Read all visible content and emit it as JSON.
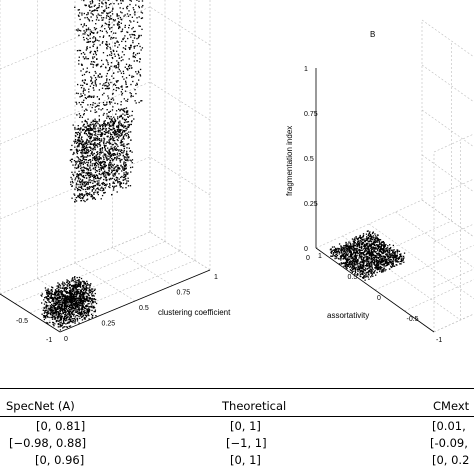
{
  "chart_data": [
    {
      "type": "scatter",
      "projection": "3d",
      "grid": true,
      "title": "",
      "x_axis": {
        "label": "clustering coefficient",
        "ticks": [
          "0",
          "0.25",
          "0.5",
          "0.75",
          "1"
        ],
        "range": [
          0,
          1
        ]
      },
      "y_axis": {
        "label": "",
        "ticks": [
          "-0.5",
          "-1"
        ],
        "range": [
          -1,
          1
        ]
      },
      "z_axis": {
        "label": "",
        "ticks": [],
        "range": [
          0,
          1
        ]
      },
      "series": [
        {
          "clusters": [
            {
              "x_range": [
                0.0,
                0.25
              ],
              "y_range": [
                -1.0,
                -0.3
              ],
              "z_range": [
                0.0,
                0.1
              ],
              "density": "high"
            },
            {
              "x_range": [
                0.3,
                0.65
              ],
              "y_range": [
                -0.2,
                0.2
              ],
              "z_range": [
                0.3,
                0.55
              ],
              "density": "high"
            },
            {
              "x_range": [
                0.35,
                0.75
              ],
              "y_range": [
                -0.1,
                0.3
              ],
              "z_range": [
                0.55,
                1.0
              ],
              "density": "medium"
            }
          ]
        }
      ]
    },
    {
      "type": "scatter",
      "projection": "3d",
      "grid": true,
      "panel_label": "B",
      "title": "",
      "x_axis": {
        "label": "assortativity",
        "ticks": [
          "1",
          "0.5",
          "0",
          "-0.5",
          "-1"
        ],
        "range": [
          1,
          -1
        ]
      },
      "y_axis": {
        "label": "",
        "ticks": [
          "0"
        ],
        "range": [
          0,
          1
        ]
      },
      "z_axis": {
        "label": "fragmentation index",
        "ticks": [
          "0",
          "0.25",
          "0.5",
          "0.75",
          "1"
        ],
        "range": [
          0,
          1
        ]
      },
      "series": [
        {
          "clusters": [
            {
              "x_range": [
                0.8,
                0.2
              ],
              "y_range": [
                0.0,
                0.4
              ],
              "z_range": [
                0.0,
                0.05
              ],
              "density": "high"
            }
          ]
        }
      ]
    }
  ],
  "table": {
    "headers": [
      "SpecNet (A)",
      "Theoretical",
      "CMext"
    ],
    "rows": [
      [
        "[0,  0.81]",
        "[0,  1]",
        "[0.01,"
      ],
      [
        "[−0.98,  0.88]",
        "[−1,  1]",
        "[-0.09,"
      ],
      [
        "[0,  0.96]",
        "[0,  1]",
        "[0,  0.2"
      ]
    ]
  }
}
